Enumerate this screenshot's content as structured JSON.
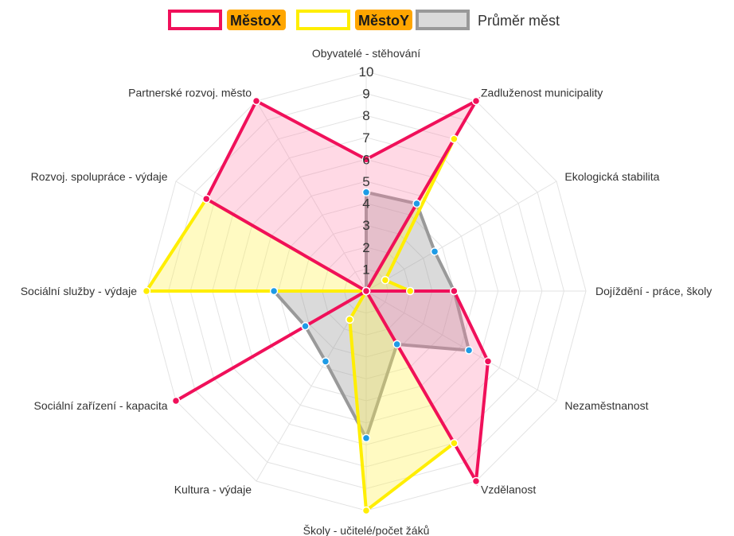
{
  "chart_data": {
    "type": "radar",
    "axes": [
      "Obyvatelé - stěhování",
      "Zadluženost municipality",
      "Ekologická stabilita",
      "Dojíždění - práce, školy",
      "Nezaměstnanost",
      "Vzdělanost",
      "Školy - učitelé/počet žáků",
      "Kultura - výdaje",
      "Sociální zařízení - kapacita",
      "Sociální služby - výdaje",
      "Rozvoj. spolupráce - výdaje",
      "Partnerské rozvoj. město"
    ],
    "ticks": [
      "1",
      "2",
      "3",
      "4",
      "5",
      "6",
      "7",
      "8",
      "9",
      "10"
    ],
    "rmin": 0,
    "rmax": 10,
    "legend_position": "top",
    "series": [
      {
        "name": "MěstoX",
        "stroke": "#f0105a",
        "fill": "rgba(255,128,170,0.30)",
        "point": "#f0105a",
        "values": [
          6,
          10,
          0,
          4,
          6.4,
          10,
          0,
          0,
          10,
          0,
          8.4,
          10
        ]
      },
      {
        "name": "MěstoY",
        "stroke": "#ffee00",
        "fill": "rgba(255,240,80,0.35)",
        "point": "#ffee00",
        "values": [
          0,
          8,
          1,
          2,
          0,
          8,
          10,
          1.5,
          0,
          10,
          8.4,
          0
        ]
      },
      {
        "name": "Průměr měst",
        "stroke": "#999999",
        "fill": "rgba(150,150,150,0.35)",
        "point": "#1e9be6",
        "values": [
          4.5,
          4.6,
          3.6,
          4,
          5.4,
          2.8,
          6.7,
          3.7,
          3.2,
          4.2,
          0,
          0
        ]
      }
    ]
  }
}
